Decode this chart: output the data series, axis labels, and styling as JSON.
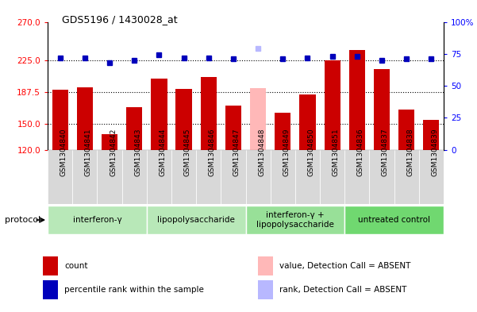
{
  "title": "GDS5196 / 1430028_at",
  "samples": [
    "GSM1304840",
    "GSM1304841",
    "GSM1304842",
    "GSM1304843",
    "GSM1304844",
    "GSM1304845",
    "GSM1304846",
    "GSM1304847",
    "GSM1304848",
    "GSM1304849",
    "GSM1304850",
    "GSM1304851",
    "GSM1304836",
    "GSM1304837",
    "GSM1304838",
    "GSM1304839"
  ],
  "counts": [
    190,
    193,
    138,
    170,
    203,
    191,
    205,
    172,
    192,
    163,
    185,
    225,
    237,
    215,
    167,
    155
  ],
  "rank_percentiles": [
    72,
    72,
    68,
    70,
    74,
    72,
    72,
    71,
    79,
    71,
    72,
    73,
    73,
    70,
    71,
    71
  ],
  "absent_indices": [
    8
  ],
  "groups": [
    {
      "label": "interferon-γ",
      "start": 0,
      "end": 4,
      "color": "#b8e8b8"
    },
    {
      "label": "lipopolysaccharide",
      "start": 4,
      "end": 8,
      "color": "#b8e8b8"
    },
    {
      "label": "interferon-γ +\nlipopolysaccharide",
      "start": 8,
      "end": 12,
      "color": "#98e098"
    },
    {
      "label": "untreated control",
      "start": 12,
      "end": 16,
      "color": "#70d870"
    }
  ],
  "ylim_left": [
    120,
    270
  ],
  "ylim_right": [
    0,
    100
  ],
  "yticks_left": [
    120,
    150,
    187.5,
    225,
    270
  ],
  "yticks_right": [
    0,
    25,
    50,
    75,
    100
  ],
  "bar_color": "#cc0000",
  "absent_bar_color": "#ffb8b8",
  "rank_color": "#0000bb",
  "absent_rank_color": "#b8b8ff",
  "legend_items": [
    {
      "color": "#cc0000",
      "label": "count"
    },
    {
      "color": "#0000bb",
      "label": "percentile rank within the sample"
    },
    {
      "color": "#ffb8b8",
      "label": "value, Detection Call = ABSENT"
    },
    {
      "color": "#b8b8ff",
      "label": "rank, Detection Call = ABSENT"
    }
  ]
}
